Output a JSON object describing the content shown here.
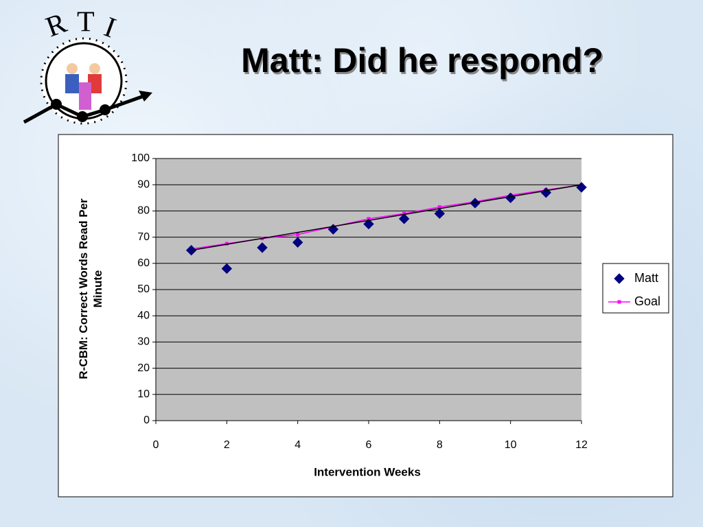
{
  "logo": {
    "letters": [
      "R",
      "T",
      "I"
    ]
  },
  "chart_data": {
    "type": "scatter",
    "title": "Matt: Did he respond?",
    "xlabel": "Intervention Weeks",
    "ylabel": "R-CBM: Correct Words Read Per Minute",
    "x": [
      1,
      2,
      3,
      4,
      5,
      6,
      7,
      8,
      9,
      10,
      11,
      12
    ],
    "series": [
      {
        "name": "Matt",
        "color": "#000080",
        "marker": "diamond",
        "line": false,
        "values": [
          65,
          58,
          66,
          68,
          73,
          75,
          77,
          79,
          83,
          85,
          87,
          89
        ]
      },
      {
        "name": "Goal",
        "color": "#ff00ff",
        "marker": "square",
        "line": true,
        "values": [
          65.5,
          67.5,
          69.5,
          71,
          74,
          77,
          79,
          81.5,
          83.5,
          86,
          88,
          90
        ]
      }
    ],
    "trendline": {
      "color": "#000000",
      "x": [
        1,
        12
      ],
      "values": [
        65,
        90
      ]
    },
    "xlim": [
      0,
      12
    ],
    "xticks": [
      0,
      2,
      4,
      6,
      8,
      10,
      12
    ],
    "ylim": [
      0,
      100
    ],
    "yticks": [
      0,
      10,
      20,
      30,
      40,
      50,
      60,
      70,
      80,
      90,
      100
    ],
    "grid": true,
    "legend": "right"
  }
}
